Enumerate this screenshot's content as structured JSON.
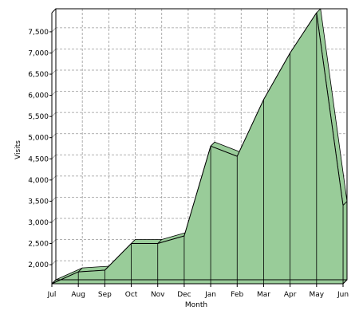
{
  "chart_data": {
    "type": "area",
    "title": "",
    "xlabel": "Month",
    "ylabel": "Visits",
    "categories": [
      "Jul",
      "Aug",
      "Sep",
      "Oct",
      "Nov",
      "Dec",
      "Jan",
      "Feb",
      "Mar",
      "Apr",
      "May",
      "Jun"
    ],
    "values": [
      1550,
      1830,
      1870,
      2500,
      2500,
      2680,
      4800,
      4560,
      5900,
      7000,
      7950,
      3400
    ],
    "ylim": [
      1550,
      7950
    ],
    "yticks": [
      2000,
      2500,
      3000,
      3500,
      4000,
      4500,
      5000,
      5500,
      6000,
      6500,
      7000,
      7500
    ],
    "ytick_labels": [
      "2,000",
      "2,500",
      "3,000",
      "3,500",
      "4,000",
      "4,500",
      "5,000",
      "5,500",
      "6,000",
      "6,500",
      "7,000",
      "7,500"
    ],
    "grid": true,
    "style": "3d",
    "colors": {
      "fill": "#99cc99",
      "stroke": "#000000",
      "grid": "#999999",
      "background": "#ffffff"
    }
  }
}
